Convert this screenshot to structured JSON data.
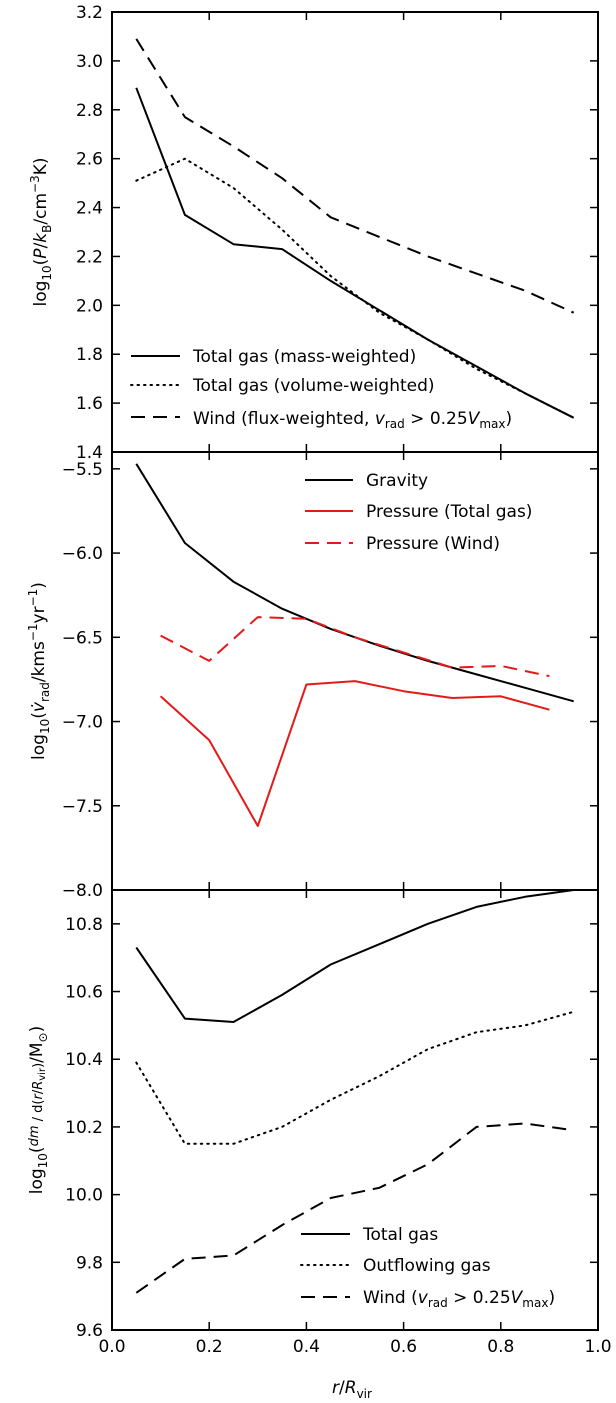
{
  "figure": {
    "xlabel": "r / R_vir",
    "x_ticks": [
      "0.0",
      "0.2",
      "0.4",
      "0.6",
      "0.8",
      "1.0"
    ],
    "x_range": [
      0.0,
      1.0
    ],
    "grid": false
  },
  "chart_data": [
    {
      "type": "line",
      "panel": "top",
      "ylabel": "log10(P/kB/cm^-3 K)",
      "ylim": [
        1.4,
        3.2
      ],
      "ytick_labels": [
        "1.4",
        "1.6",
        "1.8",
        "2.0",
        "2.2",
        "2.4",
        "2.6",
        "2.8",
        "3.0",
        "3.2"
      ],
      "ytick_values": [
        1.4,
        1.6,
        1.8,
        2.0,
        2.2,
        2.4,
        2.6,
        2.8,
        3.0,
        3.2
      ],
      "legend_position": "bottom-left",
      "series": [
        {
          "name": "Total gas (mass-weighted)",
          "style": "solid",
          "color": "#000000",
          "x": [
            0.05,
            0.15,
            0.25,
            0.35,
            0.45,
            0.55,
            0.65,
            0.75,
            0.85,
            0.95
          ],
          "y": [
            2.89,
            2.37,
            2.25,
            2.23,
            2.1,
            1.98,
            1.86,
            1.75,
            1.64,
            1.54
          ]
        },
        {
          "name": "Total gas (volume-weighted)",
          "style": "dotted",
          "color": "#000000",
          "x": [
            0.05,
            0.15,
            0.25,
            0.35,
            0.45,
            0.55,
            0.65,
            0.75,
            0.85,
            0.95
          ],
          "y": [
            2.51,
            2.6,
            2.48,
            2.31,
            2.12,
            1.97,
            1.86,
            1.74,
            1.64,
            1.54
          ]
        },
        {
          "name": "Wind (flux-weighted, v_rad > 0.25V_max)",
          "style": "dashed",
          "color": "#000000",
          "x": [
            0.05,
            0.15,
            0.25,
            0.35,
            0.45,
            0.55,
            0.65,
            0.75,
            0.85,
            0.95
          ],
          "y": [
            3.09,
            2.77,
            2.65,
            2.52,
            2.36,
            2.28,
            2.2,
            2.13,
            2.06,
            1.97
          ]
        }
      ]
    },
    {
      "type": "line",
      "panel": "middle",
      "ylabel": "log10(v_rad/kms^-1 yr^-1)",
      "ylim": [
        -8.0,
        -5.4
      ],
      "ytick_labels": [
        "-8.0",
        "-7.5",
        "-7.0",
        "-6.5",
        "-6.0",
        "-5.5"
      ],
      "ytick_values": [
        -8.0,
        -7.5,
        -7.0,
        -6.5,
        -6.0,
        -5.5
      ],
      "legend_position": "top-right",
      "series": [
        {
          "name": "Gravity",
          "style": "solid",
          "color": "#000000",
          "x": [
            0.05,
            0.15,
            0.25,
            0.35,
            0.45,
            0.55,
            0.65,
            0.75,
            0.85,
            0.95
          ],
          "y": [
            -5.47,
            -5.94,
            -6.17,
            -6.33,
            -6.45,
            -6.55,
            -6.64,
            -6.72,
            -6.8,
            -6.88
          ]
        },
        {
          "name": "Pressure (Total gas)",
          "style": "solid",
          "color": "#e41a1a",
          "x": [
            0.1,
            0.2,
            0.3,
            0.4,
            0.5,
            0.6,
            0.7,
            0.8,
            0.9
          ],
          "y": [
            -6.85,
            -7.11,
            -7.62,
            -6.78,
            -6.76,
            -6.82,
            -6.86,
            -6.85,
            -6.93
          ]
        },
        {
          "name": "Pressure (Wind)",
          "style": "dashed",
          "color": "#e41a1a",
          "x": [
            0.1,
            0.2,
            0.3,
            0.4,
            0.5,
            0.6,
            0.7,
            0.8,
            0.9
          ],
          "y": [
            -6.49,
            -6.64,
            -6.38,
            -6.39,
            -6.5,
            -6.59,
            -6.68,
            -6.67,
            -6.73
          ]
        }
      ]
    },
    {
      "type": "line",
      "panel": "bottom",
      "ylabel": "log10(dm/d(r/R_vir)/M_sun)",
      "ylim": [
        9.6,
        10.9
      ],
      "ytick_labels": [
        "9.6",
        "9.8",
        "10.0",
        "10.2",
        "10.4",
        "10.6",
        "10.8"
      ],
      "ytick_values": [
        9.6,
        9.8,
        10.0,
        10.2,
        10.4,
        10.6,
        10.8
      ],
      "legend_position": "bottom-right",
      "series": [
        {
          "name": "Total gas",
          "style": "solid",
          "color": "#000000",
          "x": [
            0.05,
            0.15,
            0.25,
            0.35,
            0.45,
            0.55,
            0.65,
            0.75,
            0.85,
            0.95
          ],
          "y": [
            10.73,
            10.52,
            10.51,
            10.59,
            10.68,
            10.74,
            10.8,
            10.85,
            10.88,
            10.9
          ]
        },
        {
          "name": "Outflowing gas",
          "style": "dotted",
          "color": "#000000",
          "x": [
            0.05,
            0.15,
            0.25,
            0.35,
            0.45,
            0.55,
            0.65,
            0.75,
            0.85,
            0.95
          ],
          "y": [
            10.39,
            10.15,
            10.15,
            10.2,
            10.28,
            10.35,
            10.43,
            10.48,
            10.5,
            10.54
          ]
        },
        {
          "name": "Wind (v_rad > 0.25V_max)",
          "style": "dashed",
          "color": "#000000",
          "x": [
            0.05,
            0.15,
            0.25,
            0.35,
            0.45,
            0.55,
            0.65,
            0.75,
            0.85,
            0.95
          ],
          "y": [
            9.71,
            9.81,
            9.82,
            9.91,
            9.99,
            10.02,
            10.09,
            10.2,
            10.21,
            10.19
          ]
        }
      ]
    }
  ]
}
